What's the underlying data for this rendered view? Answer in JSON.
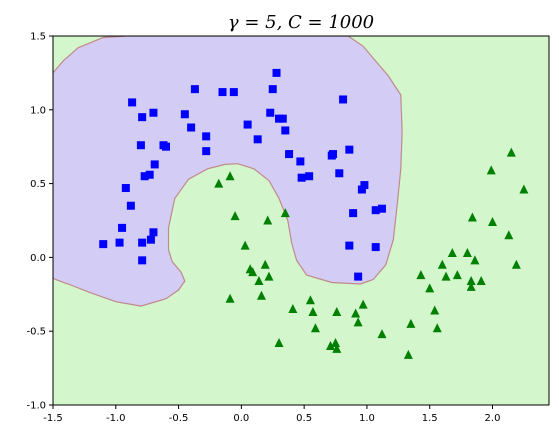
{
  "chart_data": {
    "type": "scatter",
    "title": "γ = 5, C = 1000",
    "xlim": [
      -1.5,
      2.45
    ],
    "ylim": [
      -1.0,
      1.5
    ],
    "x_ticks": [
      -1.5,
      -1.0,
      -0.5,
      0.0,
      0.5,
      1.0,
      1.5,
      2.0
    ],
    "y_ticks": [
      -1.0,
      -0.5,
      0.0,
      0.5,
      1.0,
      1.5
    ],
    "x_tick_labels": [
      "-1.5",
      "-1.0",
      "-0.5",
      "0.0",
      "0.5",
      "1.0",
      "1.5",
      "2.0"
    ],
    "y_tick_labels": [
      "-1.0",
      "-0.5",
      "0.0",
      "0.5",
      "1.0",
      "1.5"
    ],
    "grid": false,
    "colors": {
      "class0_region": "#d3cdf6",
      "class1_region": "#d3f6cd",
      "boundary": "#c08a8a",
      "class0_marker": "#0000ff",
      "class1_marker": "#008000"
    },
    "decision_region_class0": [
      [
        -1.5,
        1.25
      ],
      [
        -1.42,
        1.33
      ],
      [
        -1.3,
        1.42
      ],
      [
        -1.1,
        1.49
      ],
      [
        -0.9,
        1.5
      ],
      [
        0.35,
        1.5
      ],
      [
        0.6,
        1.5
      ],
      [
        0.85,
        1.5
      ],
      [
        0.97,
        1.43
      ],
      [
        1.07,
        1.33
      ],
      [
        1.17,
        1.23
      ],
      [
        1.27,
        1.1
      ],
      [
        1.28,
        0.85
      ],
      [
        1.27,
        0.6
      ],
      [
        1.24,
        0.35
      ],
      [
        1.21,
        0.12
      ],
      [
        1.15,
        -0.05
      ],
      [
        1.05,
        -0.15
      ],
      [
        0.95,
        -0.18
      ],
      [
        0.72,
        -0.17
      ],
      [
        0.52,
        -0.12
      ],
      [
        0.44,
        -0.02
      ],
      [
        0.4,
        0.1
      ],
      [
        0.37,
        0.25
      ],
      [
        0.3,
        0.4
      ],
      [
        0.22,
        0.52
      ],
      [
        0.1,
        0.6
      ],
      [
        -0.03,
        0.635
      ],
      [
        -0.13,
        0.63
      ],
      [
        -0.27,
        0.6
      ],
      [
        -0.42,
        0.53
      ],
      [
        -0.53,
        0.4
      ],
      [
        -0.58,
        0.2
      ],
      [
        -0.58,
        0.05
      ],
      [
        -0.55,
        -0.03
      ],
      [
        -0.48,
        -0.1
      ],
      [
        -0.45,
        -0.16
      ],
      [
        -0.5,
        -0.22
      ],
      [
        -0.6,
        -0.28
      ],
      [
        -0.8,
        -0.33
      ],
      [
        -1.0,
        -0.3
      ],
      [
        -1.2,
        -0.24
      ],
      [
        -1.38,
        -0.18
      ],
      [
        -1.48,
        -0.15
      ],
      [
        -1.5,
        -0.14
      ]
    ],
    "series": [
      {
        "marker": "square",
        "color": "#0000ff",
        "points": [
          [
            -1.1,
            0.09
          ],
          [
            -0.97,
            0.1
          ],
          [
            -0.95,
            0.2
          ],
          [
            -0.92,
            0.47
          ],
          [
            -0.88,
            0.35
          ],
          [
            -0.87,
            1.05
          ],
          [
            -0.8,
            0.76
          ],
          [
            -0.79,
            0.95
          ],
          [
            -0.79,
            0.1
          ],
          [
            -0.79,
            -0.02
          ],
          [
            -0.77,
            0.55
          ],
          [
            -0.73,
            0.56
          ],
          [
            -0.72,
            0.12
          ],
          [
            -0.7,
            0.17
          ],
          [
            -0.7,
            0.98
          ],
          [
            -0.69,
            0.63
          ],
          [
            -0.62,
            0.76
          ],
          [
            -0.6,
            0.75
          ],
          [
            -0.45,
            0.97
          ],
          [
            -0.4,
            0.88
          ],
          [
            -0.37,
            1.14
          ],
          [
            -0.28,
            0.82
          ],
          [
            -0.28,
            0.72
          ],
          [
            -0.15,
            1.12
          ],
          [
            -0.06,
            1.12
          ],
          [
            0.05,
            0.9
          ],
          [
            0.13,
            0.8
          ],
          [
            0.23,
            0.98
          ],
          [
            0.25,
            1.14
          ],
          [
            0.28,
            1.25
          ],
          [
            0.3,
            0.94
          ],
          [
            0.33,
            0.94
          ],
          [
            0.35,
            0.86
          ],
          [
            0.38,
            0.7
          ],
          [
            0.47,
            0.65
          ],
          [
            0.48,
            0.54
          ],
          [
            0.54,
            0.55
          ],
          [
            0.72,
            0.69
          ],
          [
            0.73,
            0.7
          ],
          [
            0.78,
            0.57
          ],
          [
            0.81,
            1.07
          ],
          [
            0.86,
            0.73
          ],
          [
            0.86,
            0.08
          ],
          [
            0.89,
            0.3
          ],
          [
            0.93,
            -0.13
          ],
          [
            0.96,
            0.46
          ],
          [
            0.98,
            0.49
          ],
          [
            1.07,
            0.32
          ],
          [
            1.07,
            0.07
          ],
          [
            1.12,
            0.33
          ]
        ]
      },
      {
        "marker": "triangle",
        "color": "#008000",
        "points": [
          [
            -0.18,
            0.5
          ],
          [
            -0.09,
            0.55
          ],
          [
            -0.05,
            0.28
          ],
          [
            0.03,
            0.08
          ],
          [
            0.07,
            -0.08
          ],
          [
            0.09,
            -0.1
          ],
          [
            -0.09,
            -0.28
          ],
          [
            0.14,
            -0.16
          ],
          [
            0.16,
            -0.26
          ],
          [
            0.19,
            -0.05
          ],
          [
            0.21,
            0.25
          ],
          [
            0.22,
            -0.13
          ],
          [
            0.3,
            -0.58
          ],
          [
            0.35,
            0.3
          ],
          [
            0.41,
            -0.35
          ],
          [
            0.55,
            -0.29
          ],
          [
            0.57,
            -0.37
          ],
          [
            0.59,
            -0.48
          ],
          [
            0.71,
            -0.6
          ],
          [
            0.75,
            -0.58
          ],
          [
            0.76,
            -0.62
          ],
          [
            0.76,
            -0.37
          ],
          [
            0.91,
            -0.38
          ],
          [
            0.93,
            -0.44
          ],
          [
            0.97,
            -0.32
          ],
          [
            1.12,
            -0.52
          ],
          [
            1.33,
            -0.66
          ],
          [
            1.35,
            -0.45
          ],
          [
            1.43,
            -0.12
          ],
          [
            1.5,
            -0.21
          ],
          [
            1.54,
            -0.36
          ],
          [
            1.56,
            -0.48
          ],
          [
            1.6,
            -0.05
          ],
          [
            1.63,
            -0.13
          ],
          [
            1.68,
            0.03
          ],
          [
            1.72,
            -0.12
          ],
          [
            1.8,
            0.03
          ],
          [
            1.83,
            -0.16
          ],
          [
            1.83,
            -0.2
          ],
          [
            1.84,
            0.27
          ],
          [
            1.86,
            -0.02
          ],
          [
            1.91,
            -0.16
          ],
          [
            1.99,
            0.59
          ],
          [
            2.0,
            0.24
          ],
          [
            2.13,
            0.15
          ],
          [
            2.15,
            0.71
          ],
          [
            2.19,
            -0.05
          ],
          [
            2.25,
            0.46
          ]
        ]
      }
    ]
  }
}
